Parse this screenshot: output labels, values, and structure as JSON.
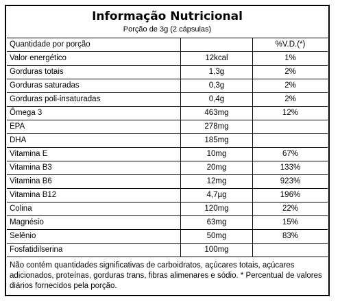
{
  "title": "Informação Nutricional",
  "subtitle": "Porção de 3g (2 cápsulas)",
  "header": {
    "col1": "Quantidade por porção",
    "col2": "",
    "col3": "%V.D.(*)"
  },
  "rows": [
    {
      "name": "Valor energético",
      "amount": "12kcal",
      "vd": "1%"
    },
    {
      "name": "Gorduras totais",
      "amount": "1,3g",
      "vd": "2%"
    },
    {
      "name": "Gorduras saturadas",
      "amount": "0,3g",
      "vd": "2%"
    },
    {
      "name": "Gorduras poli-insaturadas",
      "amount": "0,4g",
      "vd": "2%"
    },
    {
      "name": "Ômega 3",
      "amount": "463mg",
      "vd": "12%"
    },
    {
      "name": "EPA",
      "amount": "278mg",
      "vd": ""
    },
    {
      "name": "DHA",
      "amount": "185mg",
      "vd": ""
    },
    {
      "name": "Vitamina E",
      "amount": "10mg",
      "vd": "67%"
    },
    {
      "name": "Vitamina B3",
      "amount": "20mg",
      "vd": "133%"
    },
    {
      "name": "Vitamina B6",
      "amount": "12mg",
      "vd": "923%"
    },
    {
      "name": "Vitamina B12",
      "amount": "4,7µg",
      "vd": "196%"
    },
    {
      "name": "Colina",
      "amount": "120mg",
      "vd": "22%"
    },
    {
      "name": "Magnésio",
      "amount": "63mg",
      "vd": "15%"
    },
    {
      "name": "Selênio",
      "amount": "50mg",
      "vd": "83%"
    },
    {
      "name": "Fosfatidilserina",
      "amount": "100mg",
      "vd": ""
    }
  ],
  "footnote": "Não contém quantidades significativas de carboidratos, açúcares totais, açúcares adicionados, proteínas, gorduras trans, fibras alimenares e sódio. * Percentual de valores diários fornecidos pela porção."
}
